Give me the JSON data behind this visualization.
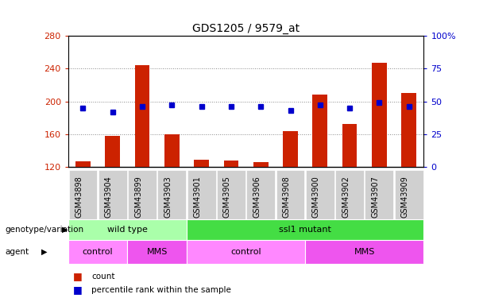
{
  "title": "GDS1205 / 9579_at",
  "samples": [
    "GSM43898",
    "GSM43904",
    "GSM43899",
    "GSM43903",
    "GSM43901",
    "GSM43905",
    "GSM43906",
    "GSM43908",
    "GSM43900",
    "GSM43902",
    "GSM43907",
    "GSM43909"
  ],
  "counts": [
    127,
    158,
    244,
    160,
    129,
    128,
    126,
    164,
    208,
    172,
    247,
    210
  ],
  "percentile_ranks": [
    45,
    42,
    46,
    47,
    46,
    46,
    46,
    43,
    47,
    45,
    49,
    46
  ],
  "y_min": 120,
  "y_max": 280,
  "y_ticks": [
    120,
    160,
    200,
    240,
    280
  ],
  "y2_ticks": [
    0,
    25,
    50,
    75,
    100
  ],
  "bar_color": "#cc2200",
  "dot_color": "#0000cc",
  "genotype_groups": [
    {
      "label": "wild type",
      "start": 0,
      "end": 4,
      "color": "#aaffaa"
    },
    {
      "label": "ssl1 mutant",
      "start": 4,
      "end": 12,
      "color": "#44dd44"
    }
  ],
  "agent_groups": [
    {
      "label": "control",
      "start": 0,
      "end": 2,
      "color": "#ff88ff"
    },
    {
      "label": "MMS",
      "start": 2,
      "end": 4,
      "color": "#ee55ee"
    },
    {
      "label": "control",
      "start": 4,
      "end": 8,
      "color": "#ff88ff"
    },
    {
      "label": "MMS",
      "start": 8,
      "end": 12,
      "color": "#ee55ee"
    }
  ],
  "legend_count_color": "#cc2200",
  "legend_pct_color": "#0000cc",
  "tick_color_left": "#cc2200",
  "tick_color_right": "#0000cc",
  "bar_bottom": 120,
  "xtick_bg": "#d0d0d0",
  "dot_size": 5
}
